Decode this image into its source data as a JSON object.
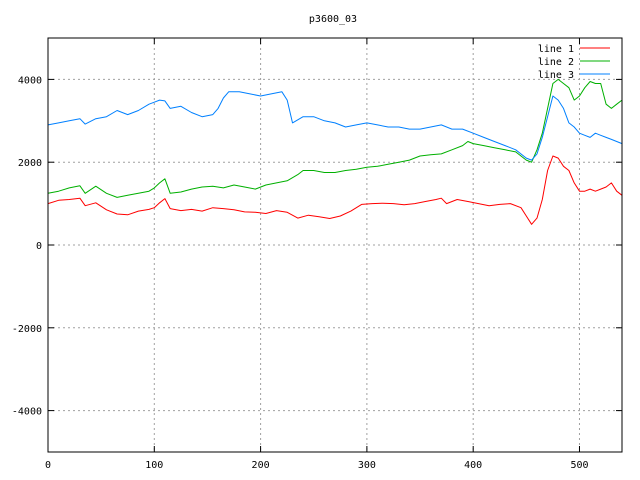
{
  "chart_data": {
    "type": "line",
    "title": "p3600_03",
    "xlabel": "",
    "ylabel": "",
    "xlim": [
      0,
      540
    ],
    "ylim": [
      -5000,
      5000
    ],
    "x_ticks": [
      0,
      100,
      200,
      300,
      400,
      500
    ],
    "y_ticks": [
      -4000,
      -2000,
      0,
      2000,
      4000
    ],
    "x_tick_labels": [
      "0",
      "100",
      "200",
      "300",
      "400",
      "500"
    ],
    "y_tick_labels": [
      "-4000",
      "-2000",
      "0",
      "2000",
      "4000"
    ],
    "grid": true,
    "legend_position": "top-right",
    "series": [
      {
        "name": "line 1",
        "color": "#ff0000",
        "points": [
          [
            0,
            1000
          ],
          [
            10,
            1080
          ],
          [
            20,
            1100
          ],
          [
            30,
            1130
          ],
          [
            35,
            950
          ],
          [
            45,
            1020
          ],
          [
            55,
            850
          ],
          [
            65,
            750
          ],
          [
            75,
            730
          ],
          [
            85,
            820
          ],
          [
            95,
            860
          ],
          [
            100,
            900
          ],
          [
            105,
            1020
          ],
          [
            110,
            1120
          ],
          [
            115,
            880
          ],
          [
            125,
            830
          ],
          [
            135,
            860
          ],
          [
            145,
            820
          ],
          [
            155,
            900
          ],
          [
            165,
            880
          ],
          [
            175,
            850
          ],
          [
            185,
            800
          ],
          [
            195,
            790
          ],
          [
            205,
            760
          ],
          [
            215,
            830
          ],
          [
            225,
            790
          ],
          [
            235,
            650
          ],
          [
            245,
            720
          ],
          [
            255,
            680
          ],
          [
            265,
            640
          ],
          [
            275,
            700
          ],
          [
            285,
            820
          ],
          [
            295,
            980
          ],
          [
            305,
            1000
          ],
          [
            315,
            1010
          ],
          [
            325,
            1000
          ],
          [
            335,
            970
          ],
          [
            345,
            1000
          ],
          [
            355,
            1050
          ],
          [
            365,
            1100
          ],
          [
            370,
            1130
          ],
          [
            375,
            1000
          ],
          [
            385,
            1100
          ],
          [
            395,
            1050
          ],
          [
            405,
            1000
          ],
          [
            415,
            950
          ],
          [
            425,
            980
          ],
          [
            435,
            1000
          ],
          [
            445,
            900
          ],
          [
            450,
            700
          ],
          [
            455,
            500
          ],
          [
            460,
            650
          ],
          [
            465,
            1100
          ],
          [
            470,
            1800
          ],
          [
            475,
            2150
          ],
          [
            480,
            2100
          ],
          [
            485,
            1900
          ],
          [
            490,
            1800
          ],
          [
            495,
            1500
          ],
          [
            500,
            1300
          ],
          [
            505,
            1300
          ],
          [
            510,
            1350
          ],
          [
            515,
            1300
          ],
          [
            520,
            1350
          ],
          [
            525,
            1400
          ],
          [
            530,
            1500
          ],
          [
            535,
            1300
          ],
          [
            540,
            1200
          ]
        ]
      },
      {
        "name": "line 2",
        "color": "#00b000",
        "points": [
          [
            0,
            1250
          ],
          [
            10,
            1300
          ],
          [
            20,
            1380
          ],
          [
            30,
            1430
          ],
          [
            35,
            1250
          ],
          [
            45,
            1420
          ],
          [
            55,
            1250
          ],
          [
            65,
            1150
          ],
          [
            75,
            1200
          ],
          [
            85,
            1250
          ],
          [
            95,
            1300
          ],
          [
            100,
            1380
          ],
          [
            105,
            1500
          ],
          [
            110,
            1600
          ],
          [
            115,
            1250
          ],
          [
            125,
            1280
          ],
          [
            135,
            1350
          ],
          [
            145,
            1400
          ],
          [
            155,
            1420
          ],
          [
            165,
            1380
          ],
          [
            175,
            1450
          ],
          [
            185,
            1400
          ],
          [
            195,
            1350
          ],
          [
            205,
            1450
          ],
          [
            215,
            1500
          ],
          [
            225,
            1550
          ],
          [
            235,
            1700
          ],
          [
            240,
            1800
          ],
          [
            250,
            1800
          ],
          [
            260,
            1750
          ],
          [
            270,
            1750
          ],
          [
            280,
            1800
          ],
          [
            290,
            1830
          ],
          [
            300,
            1880
          ],
          [
            310,
            1900
          ],
          [
            320,
            1950
          ],
          [
            330,
            2000
          ],
          [
            340,
            2050
          ],
          [
            350,
            2150
          ],
          [
            360,
            2180
          ],
          [
            370,
            2200
          ],
          [
            380,
            2300
          ],
          [
            390,
            2400
          ],
          [
            395,
            2500
          ],
          [
            400,
            2450
          ],
          [
            410,
            2400
          ],
          [
            420,
            2350
          ],
          [
            430,
            2300
          ],
          [
            440,
            2250
          ],
          [
            450,
            2050
          ],
          [
            455,
            2000
          ],
          [
            460,
            2300
          ],
          [
            465,
            2700
          ],
          [
            470,
            3300
          ],
          [
            475,
            3900
          ],
          [
            480,
            4000
          ],
          [
            485,
            3900
          ],
          [
            490,
            3800
          ],
          [
            495,
            3500
          ],
          [
            500,
            3600
          ],
          [
            505,
            3800
          ],
          [
            510,
            3950
          ],
          [
            515,
            3900
          ],
          [
            520,
            3900
          ],
          [
            525,
            3400
          ],
          [
            530,
            3300
          ],
          [
            535,
            3400
          ],
          [
            540,
            3500
          ]
        ]
      },
      {
        "name": "line 3",
        "color": "#0080ff",
        "points": [
          [
            0,
            2900
          ],
          [
            10,
            2950
          ],
          [
            20,
            3000
          ],
          [
            30,
            3050
          ],
          [
            35,
            2920
          ],
          [
            45,
            3050
          ],
          [
            55,
            3100
          ],
          [
            65,
            3250
          ],
          [
            75,
            3150
          ],
          [
            85,
            3250
          ],
          [
            95,
            3400
          ],
          [
            100,
            3450
          ],
          [
            105,
            3500
          ],
          [
            110,
            3480
          ],
          [
            115,
            3300
          ],
          [
            125,
            3350
          ],
          [
            135,
            3200
          ],
          [
            145,
            3100
          ],
          [
            155,
            3150
          ],
          [
            160,
            3300
          ],
          [
            165,
            3550
          ],
          [
            170,
            3700
          ],
          [
            180,
            3700
          ],
          [
            190,
            3650
          ],
          [
            200,
            3600
          ],
          [
            210,
            3650
          ],
          [
            220,
            3700
          ],
          [
            225,
            3500
          ],
          [
            230,
            2950
          ],
          [
            240,
            3100
          ],
          [
            250,
            3100
          ],
          [
            260,
            3000
          ],
          [
            270,
            2950
          ],
          [
            280,
            2850
          ],
          [
            290,
            2900
          ],
          [
            300,
            2950
          ],
          [
            310,
            2900
          ],
          [
            320,
            2850
          ],
          [
            330,
            2850
          ],
          [
            340,
            2800
          ],
          [
            350,
            2800
          ],
          [
            360,
            2850
          ],
          [
            370,
            2900
          ],
          [
            380,
            2800
          ],
          [
            390,
            2800
          ],
          [
            400,
            2700
          ],
          [
            410,
            2600
          ],
          [
            420,
            2500
          ],
          [
            430,
            2400
          ],
          [
            440,
            2300
          ],
          [
            450,
            2100
          ],
          [
            455,
            2050
          ],
          [
            460,
            2200
          ],
          [
            465,
            2600
          ],
          [
            470,
            3100
          ],
          [
            475,
            3600
          ],
          [
            480,
            3500
          ],
          [
            485,
            3300
          ],
          [
            490,
            2950
          ],
          [
            495,
            2850
          ],
          [
            500,
            2700
          ],
          [
            505,
            2650
          ],
          [
            510,
            2600
          ],
          [
            515,
            2700
          ],
          [
            520,
            2650
          ],
          [
            525,
            2600
          ],
          [
            530,
            2550
          ],
          [
            535,
            2500
          ],
          [
            540,
            2450
          ]
        ]
      }
    ]
  }
}
